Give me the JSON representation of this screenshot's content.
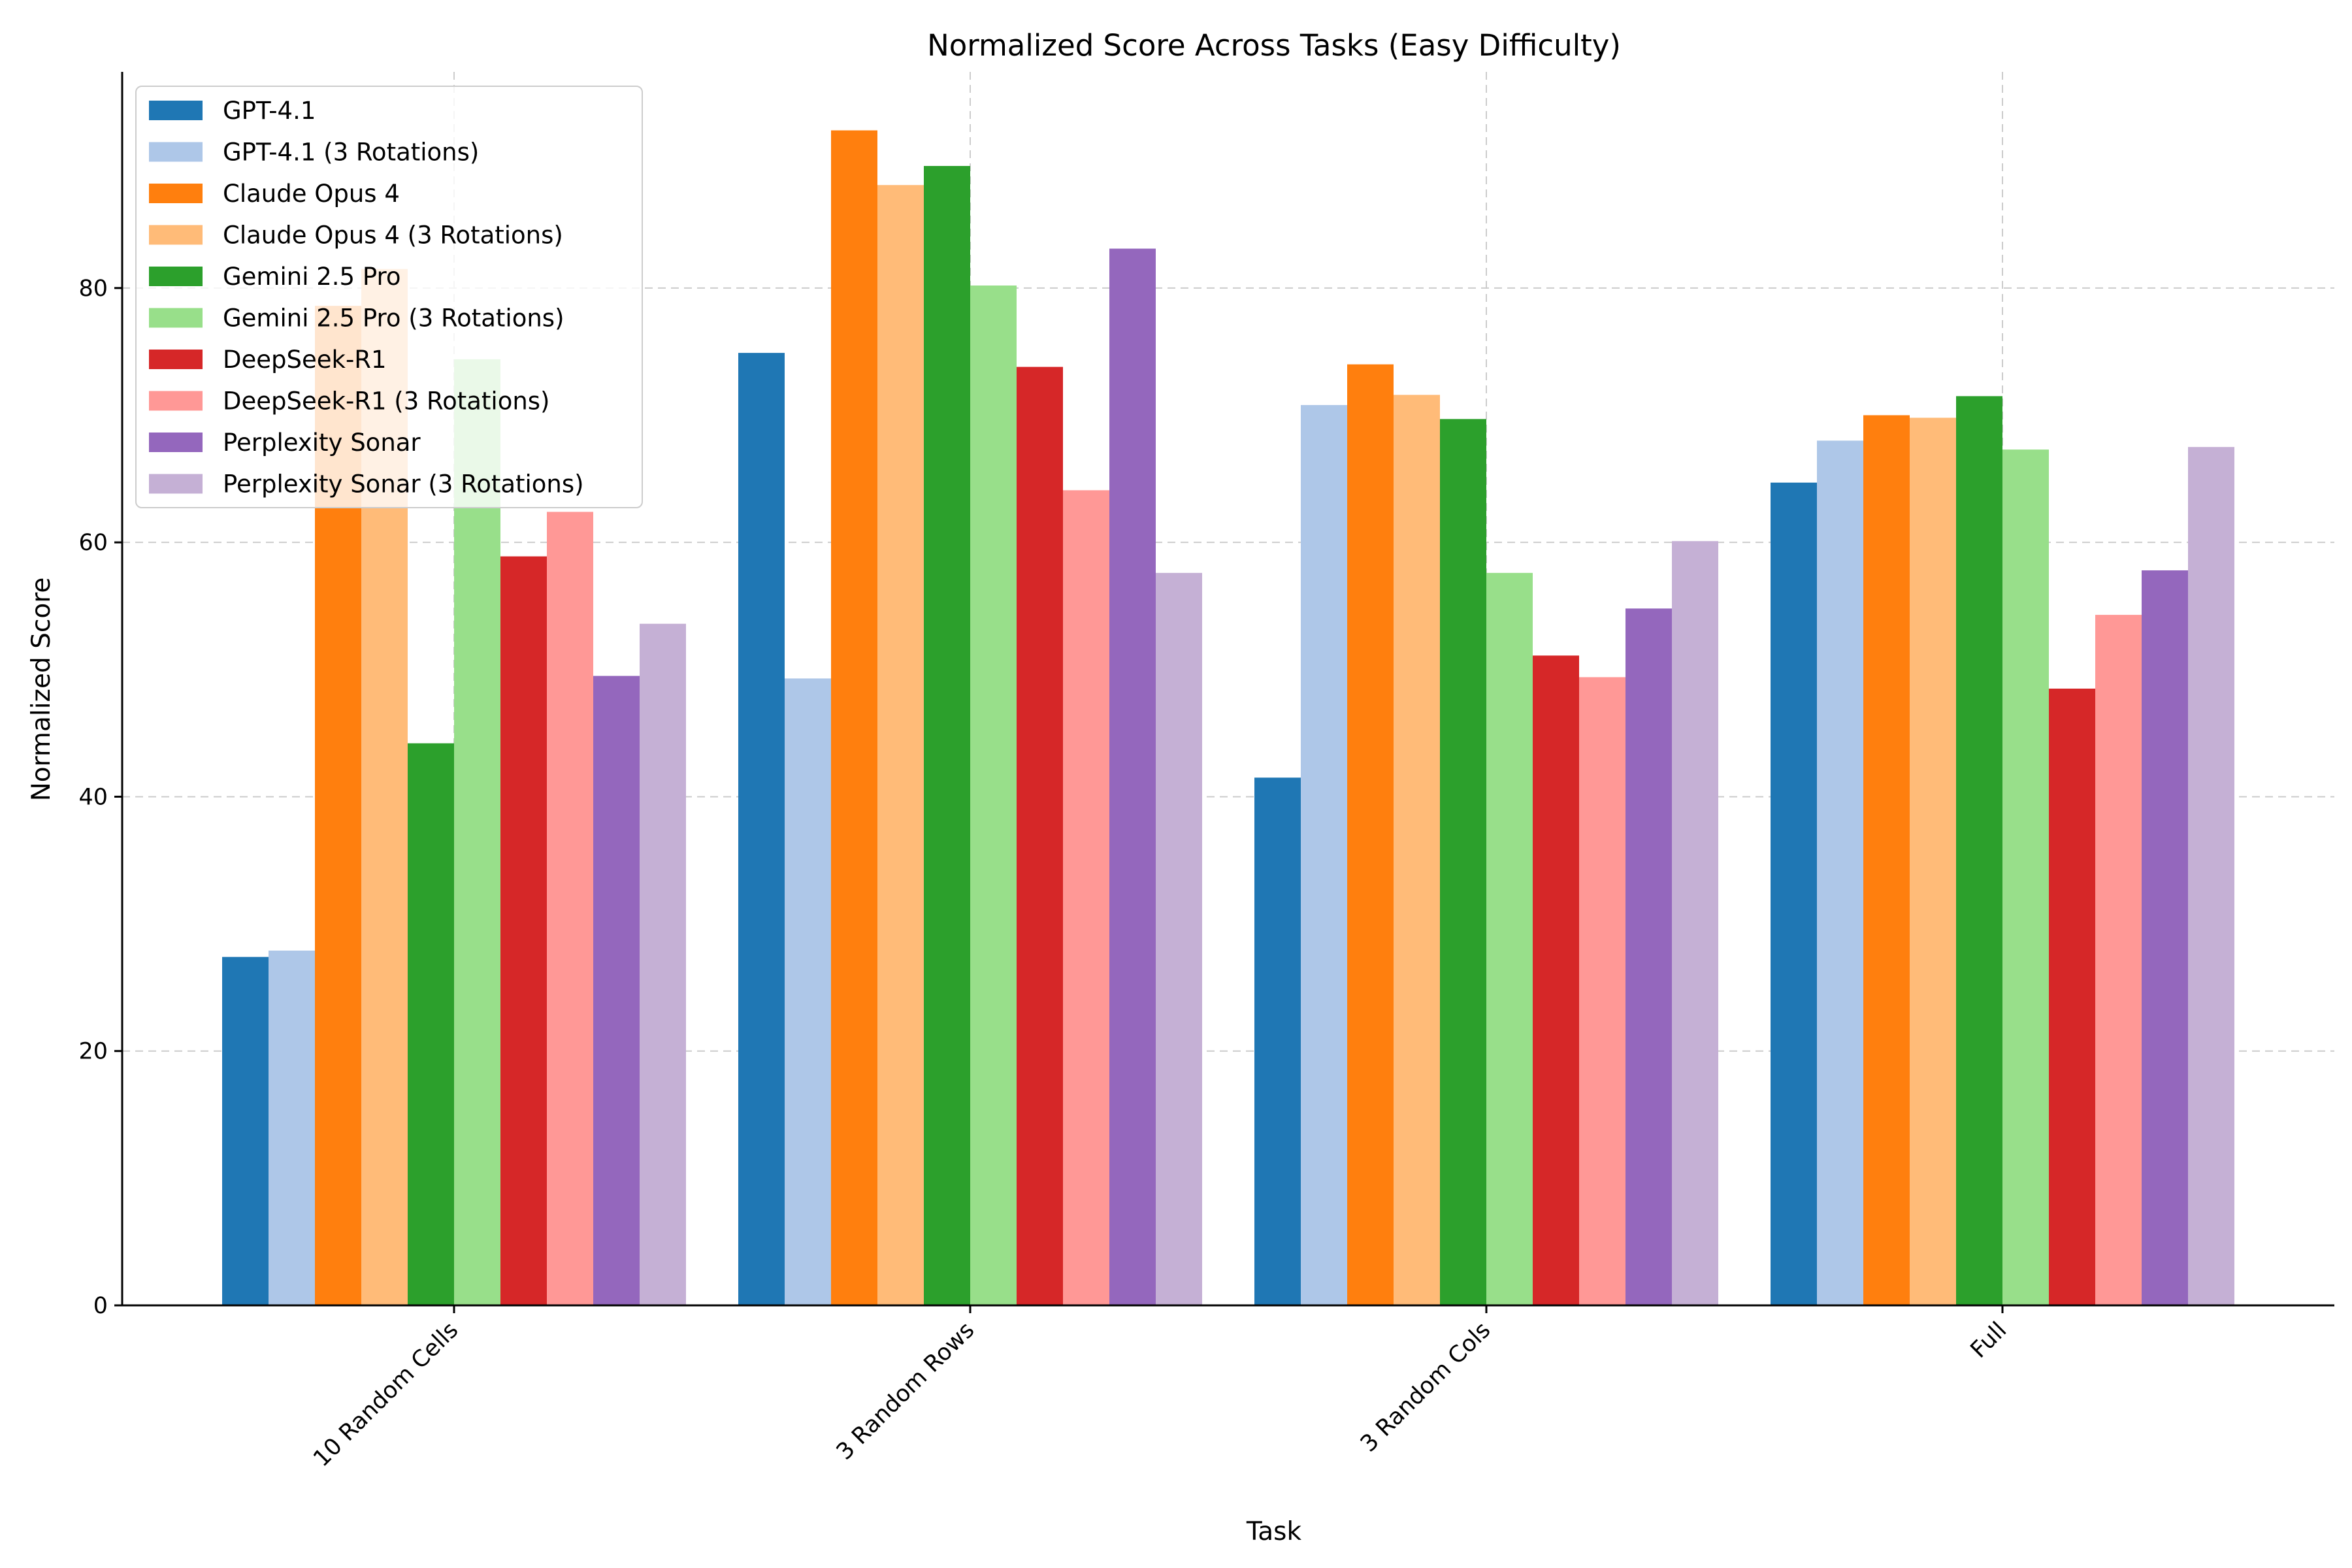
{
  "chart_data": {
    "type": "bar",
    "title": "Normalized Score Across Tasks (Easy Difficulty)",
    "xlabel": "Task",
    "ylabel": "Normalized Score",
    "categories": [
      "10 Random Cells",
      "3 Random Rows",
      "3 Random Cols",
      "Full"
    ],
    "ylim": [
      0,
      97
    ],
    "yticks": [
      0,
      20,
      40,
      60,
      80
    ],
    "grid": true,
    "legend_position": "top-left",
    "series": [
      {
        "name": "GPT-4.1",
        "color": "#1f77b4",
        "values": [
          27.4,
          74.9,
          41.5,
          64.7
        ]
      },
      {
        "name": "GPT-4.1 (3 Rotations)",
        "color": "#aec7e8",
        "values": [
          27.9,
          49.3,
          70.8,
          68.0
        ]
      },
      {
        "name": "Claude Opus 4",
        "color": "#ff7f0e",
        "values": [
          78.6,
          92.4,
          74.0,
          70.0
        ]
      },
      {
        "name": "Claude Opus 4 (3 Rotations)",
        "color": "#ffbb78",
        "values": [
          81.5,
          88.1,
          71.6,
          69.8
        ]
      },
      {
        "name": "Gemini 2.5 Pro",
        "color": "#2ca02c",
        "values": [
          44.2,
          89.6,
          69.7,
          71.5
        ]
      },
      {
        "name": "Gemini 2.5 Pro (3 Rotations)",
        "color": "#98df8a",
        "values": [
          74.4,
          80.2,
          57.6,
          67.3
        ]
      },
      {
        "name": "DeepSeek-R1",
        "color": "#d62728",
        "values": [
          58.9,
          73.8,
          51.1,
          48.5
        ]
      },
      {
        "name": "DeepSeek-R1 (3 Rotations)",
        "color": "#ff9896",
        "values": [
          62.4,
          64.1,
          49.4,
          54.3
        ]
      },
      {
        "name": "Perplexity Sonar",
        "color": "#9467bd",
        "values": [
          49.5,
          83.1,
          54.8,
          57.8
        ]
      },
      {
        "name": "Perplexity Sonar (3 Rotations)",
        "color": "#c5b0d5",
        "values": [
          53.6,
          57.6,
          60.1,
          67.5
        ]
      }
    ]
  }
}
